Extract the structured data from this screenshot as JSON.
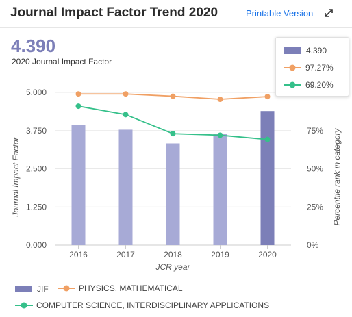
{
  "header": {
    "title": "Journal Impact Factor Trend 2020",
    "printable_label": "Printable Version",
    "expand_icon": "expand-arrows-icon"
  },
  "summary": {
    "value": "4.390",
    "label": "2020 Journal Impact Factor"
  },
  "tooltip": {
    "rows": [
      {
        "label": "4.390"
      },
      {
        "label": "97.27%"
      },
      {
        "label": "69.20%"
      }
    ]
  },
  "legend": {
    "items": [
      {
        "label": "JIF"
      },
      {
        "label": "PHYSICS, MATHEMATICAL"
      },
      {
        "label": "COMPUTER SCIENCE, INTERDISCIPLINARY APPLICATIONS"
      }
    ]
  },
  "colors": {
    "bar": "#a7aad6",
    "bar_highlight": "#7c7fb8",
    "physics": "#f0a064",
    "cs": "#35c08a"
  },
  "chart_data": {
    "type": "bar",
    "categories": [
      "2016",
      "2017",
      "2018",
      "2019",
      "2020"
    ],
    "xlabel": "JCR year",
    "ylabel": "Journal Impact Factor",
    "ylabel_right": "Percentile rank in category",
    "ylim": [
      0,
      5
    ],
    "ylim_right": [
      0,
      100
    ],
    "yticks": [
      "0.000",
      "1.250",
      "2.500",
      "3.750",
      "5.000"
    ],
    "yticks_right": [
      "0%",
      "25%",
      "50%",
      "75%"
    ],
    "grid": true,
    "series": [
      {
        "name": "JIF",
        "type": "bar",
        "axis": "left",
        "values": [
          3.94,
          3.78,
          3.33,
          3.65,
          4.39
        ]
      },
      {
        "name": "PHYSICS, MATHEMATICAL",
        "type": "line",
        "axis": "right",
        "values": [
          99,
          99,
          97.5,
          95.5,
          97.27
        ]
      },
      {
        "name": "COMPUTER SCIENCE, INTERDISCIPLINARY APPLICATIONS",
        "type": "line",
        "axis": "right",
        "values": [
          91,
          85.5,
          73,
          72,
          69.2
        ]
      }
    ]
  }
}
